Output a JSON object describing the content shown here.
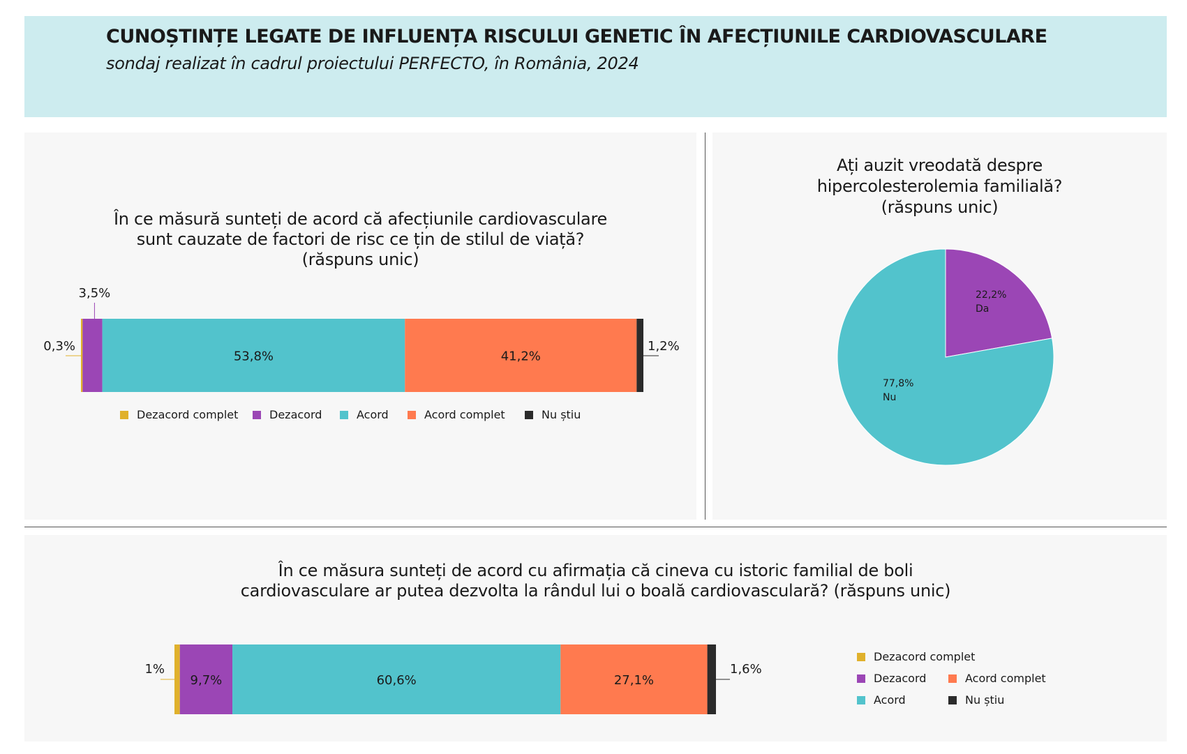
{
  "header": {
    "title": "CUNOȘTINȚE LEGATE DE INFLUENȚA RISCULUI GENETIC ÎN AFECȚIUNILE CARDIOVASCULARE",
    "subtitle": "sondaj realizat în cadrul proiectului PERFECTO, în România, 2024"
  },
  "colors": {
    "dezacord_complet": "#e0b12c",
    "dezacord": "#9b46b5",
    "acord": "#52c3cc",
    "acord_complet": "#ff7a4f",
    "nu_stiu": "#2b2b2b",
    "header_bg": "#cdecef",
    "panel_bg": "#f7f7f7"
  },
  "legend_labels": [
    "Dezacord complet",
    "Dezacord",
    "Acord",
    "Acord complet",
    "Nu știu"
  ],
  "chart_data": [
    {
      "type": "bar",
      "orientation": "horizontal-stacked",
      "title_lines": [
        "În ce măsură sunteți de acord că afecțiunile cardiovasculare",
        "sunt cauzate de factori de risc ce țin de stilul de viață?",
        "(răspuns unic)"
      ],
      "series": [
        {
          "name": "Dezacord complet",
          "value": 0.3,
          "label": "0,3%"
        },
        {
          "name": "Dezacord",
          "value": 3.5,
          "label": "3,5%"
        },
        {
          "name": "Acord",
          "value": 53.8,
          "label": "53,8%"
        },
        {
          "name": "Acord complet",
          "value": 41.2,
          "label": "41,2%"
        },
        {
          "name": "Nu știu",
          "value": 1.2,
          "label": "1,2%"
        }
      ],
      "legend": "bottom"
    },
    {
      "type": "pie",
      "title_lines": [
        "Ați auzit vreodată despre",
        "hipercolesterolemia familială?",
        "(răspuns unic)"
      ],
      "slices": [
        {
          "name": "Da",
          "value": 22.2,
          "label": "22,2%"
        },
        {
          "name": "Nu",
          "value": 77.8,
          "label": "77,8%"
        }
      ]
    },
    {
      "type": "bar",
      "orientation": "horizontal-stacked",
      "title_lines": [
        "În ce măsura sunteți de acord cu afirmația că cineva cu istoric familial de boli",
        "cardiovasculare ar putea dezvolta la rândul lui o boală cardiovasculară? (răspuns unic)"
      ],
      "series": [
        {
          "name": "Dezacord complet",
          "value": 1,
          "label": "1%"
        },
        {
          "name": "Dezacord",
          "value": 9.7,
          "label": "9,7%"
        },
        {
          "name": "Acord",
          "value": 60.6,
          "label": "60,6%"
        },
        {
          "name": "Acord complet",
          "value": 27.1,
          "label": "27,1%"
        },
        {
          "name": "Nu știu",
          "value": 1.6,
          "label": "1,6%"
        }
      ],
      "legend": "right"
    }
  ]
}
